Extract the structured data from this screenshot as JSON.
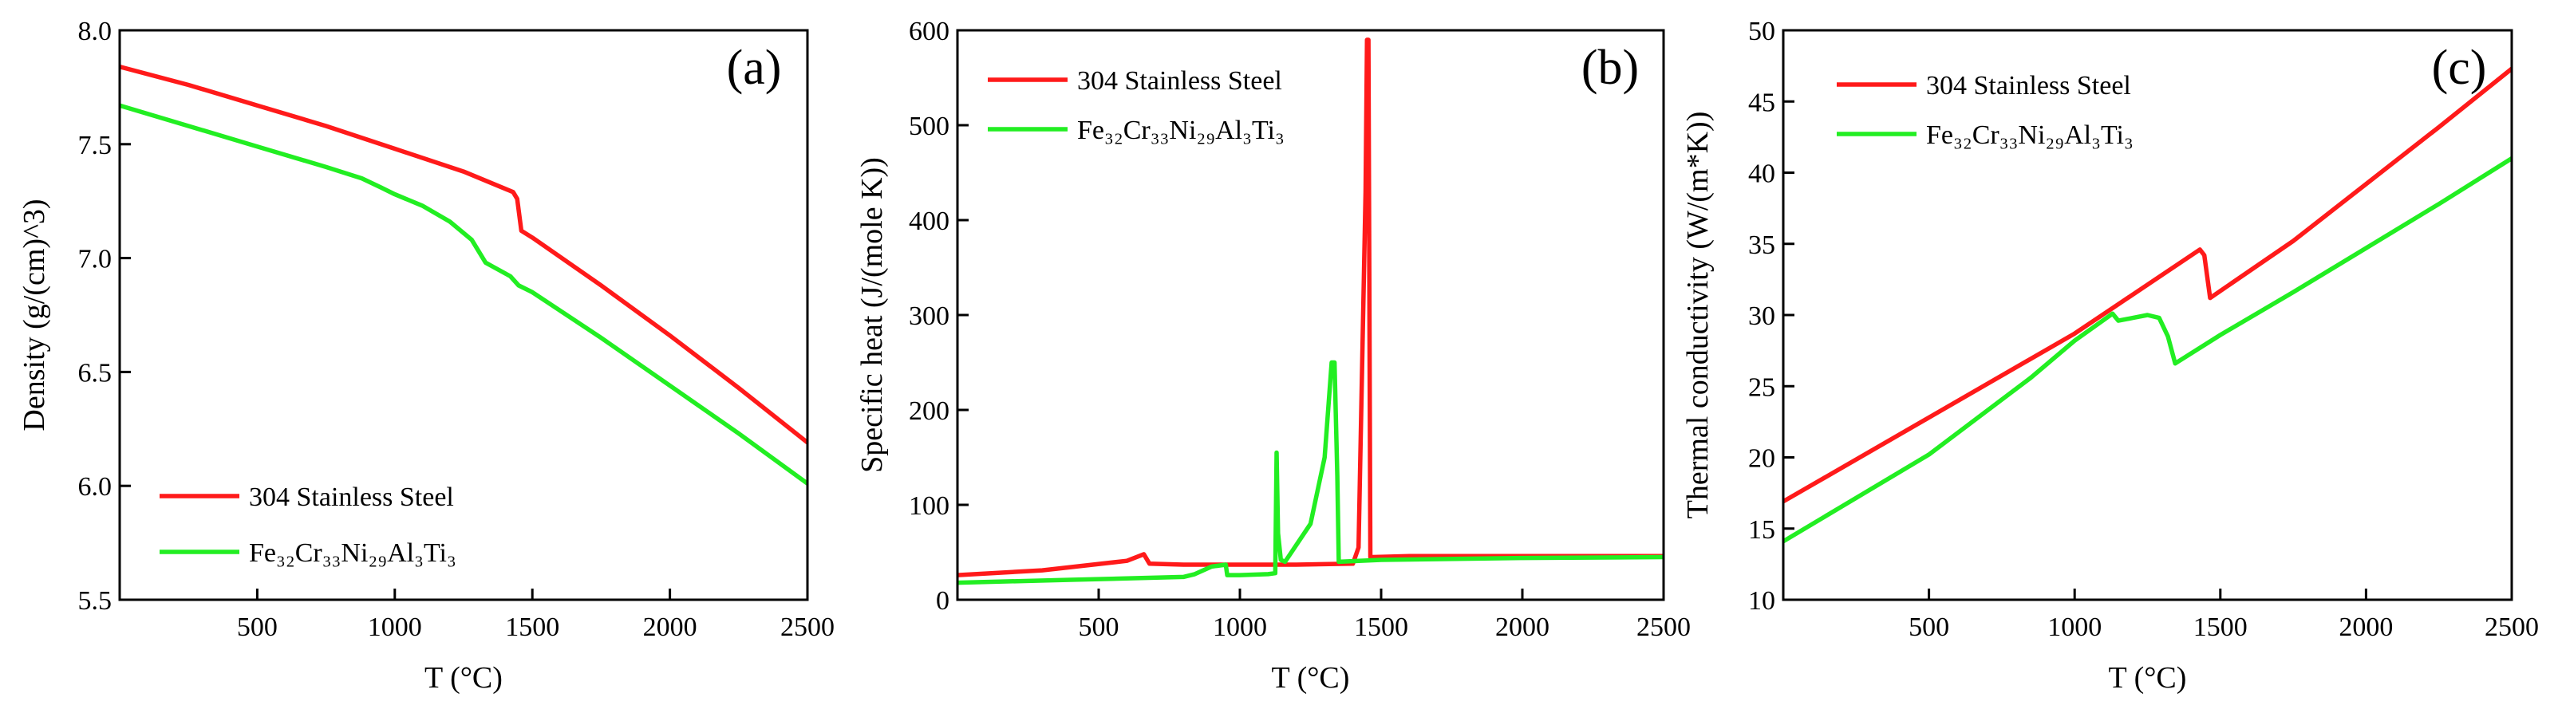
{
  "chart_data": [
    {
      "type": "line",
      "panel_label": "(a)",
      "xlabel": "T (°C)",
      "ylabel": "Density (g/(cm)^3)",
      "xlim": [
        0,
        2500
      ],
      "ylim": [
        5.5,
        8.0
      ],
      "xticks": [
        500,
        1000,
        1500,
        2000,
        2500
      ],
      "xtick_labels": [
        "500",
        "1000",
        "1500",
        "2000",
        "2500"
      ],
      "yticks": [
        5.5,
        6.0,
        6.5,
        7.0,
        7.5,
        8.0
      ],
      "ytick_labels": [
        "5.5",
        "6.0",
        "6.5",
        "7.0",
        "7.5",
        "8.0"
      ],
      "legend_position": "bottom-left",
      "series": [
        {
          "name": "304 Stainless Steel",
          "color": "#ff1a1a",
          "x": [
            0,
            250,
            500,
            750,
            1000,
            1250,
            1430,
            1445,
            1460,
            1500,
            1750,
            2000,
            2250,
            2500
          ],
          "y": [
            7.84,
            7.76,
            7.67,
            7.58,
            7.48,
            7.38,
            7.29,
            7.26,
            7.12,
            7.09,
            6.88,
            6.66,
            6.43,
            6.19
          ]
        },
        {
          "name": "Fe₃₂Cr₃₃Ni₂₉Al₃Ti₃",
          "color": "#22ee22",
          "x": [
            0,
            250,
            500,
            750,
            880,
            950,
            1000,
            1100,
            1200,
            1280,
            1330,
            1360,
            1420,
            1450,
            1500,
            1750,
            2000,
            2250,
            2500
          ],
          "y": [
            7.67,
            7.58,
            7.49,
            7.4,
            7.35,
            7.31,
            7.28,
            7.23,
            7.16,
            7.08,
            6.98,
            6.96,
            6.92,
            6.88,
            6.85,
            6.65,
            6.44,
            6.23,
            6.01
          ]
        }
      ]
    },
    {
      "type": "line",
      "panel_label": "(b)",
      "xlabel": "T (°C)",
      "ylabel": "Specific heat (J/(mole K))",
      "xlim": [
        0,
        2500
      ],
      "ylim": [
        0,
        600
      ],
      "xticks": [
        500,
        1000,
        1500,
        2000,
        2500
      ],
      "xtick_labels": [
        "500",
        "1000",
        "1500",
        "2000",
        "2500"
      ],
      "yticks": [
        0,
        100,
        200,
        300,
        400,
        500,
        600
      ],
      "ytick_labels": [
        "0",
        "100",
        "200",
        "300",
        "400",
        "500",
        "600"
      ],
      "legend_position": "top-left",
      "series": [
        {
          "name": "304 Stainless Steel",
          "color": "#ff1a1a",
          "x": [
            0,
            300,
            600,
            660,
            680,
            800,
            1000,
            1200,
            1400,
            1420,
            1445,
            1450,
            1455,
            1462,
            1470,
            1600,
            2000,
            2500
          ],
          "y": [
            26,
            31,
            41,
            48,
            38,
            37,
            37,
            37,
            38,
            55,
            430,
            590,
            590,
            45,
            45,
            46,
            46,
            46
          ]
        },
        {
          "name": "Fe₃₂Cr₃₃Ni₂₉Al₃Ti₃",
          "color": "#22ee22",
          "x": [
            0,
            400,
            800,
            840,
            900,
            950,
            955,
            1000,
            1100,
            1125,
            1130,
            1135,
            1145,
            1160,
            1250,
            1300,
            1325,
            1335,
            1345,
            1350,
            1500,
            2000,
            2500
          ],
          "y": [
            18,
            21,
            24,
            27,
            35,
            37,
            26,
            26,
            27,
            28,
            155,
            70,
            42,
            40,
            80,
            150,
            250,
            250,
            130,
            40,
            42,
            44,
            45
          ]
        }
      ]
    },
    {
      "type": "line",
      "panel_label": "(c)",
      "xlabel": "T (°C)",
      "ylabel": "Thermal conductivity (W/(m*K))",
      "xlim": [
        0,
        2500
      ],
      "ylim": [
        10,
        50
      ],
      "xticks": [
        500,
        1000,
        1500,
        2000,
        2500
      ],
      "xtick_labels": [
        "500",
        "1000",
        "1500",
        "2000",
        "2500"
      ],
      "yticks": [
        10,
        15,
        20,
        25,
        30,
        35,
        40,
        45,
        50
      ],
      "ytick_labels": [
        "10",
        "15",
        "20",
        "25",
        "30",
        "35",
        "40",
        "45",
        "50"
      ],
      "legend_position": "top-left",
      "series": [
        {
          "name": "304 Stainless Steel",
          "color": "#ff1a1a",
          "x": [
            0,
            500,
            1000,
            1430,
            1445,
            1465,
            1750,
            2000,
            2250,
            2500
          ],
          "y": [
            16.9,
            22.8,
            28.7,
            34.6,
            34.2,
            31.2,
            35.2,
            39.2,
            43.2,
            47.3
          ]
        },
        {
          "name": "Fe₃₂Cr₃₃Ni₂₉Al₃Ti₃",
          "color": "#22ee22",
          "x": [
            0,
            500,
            850,
            1000,
            1130,
            1150,
            1200,
            1250,
            1290,
            1320,
            1345,
            1500,
            1750,
            2000,
            2250,
            2500
          ],
          "y": [
            14.1,
            20.2,
            25.6,
            28.2,
            30.1,
            29.6,
            29.8,
            30.0,
            29.8,
            28.5,
            26.6,
            28.6,
            31.6,
            34.7,
            37.8,
            41.0
          ]
        }
      ]
    }
  ]
}
